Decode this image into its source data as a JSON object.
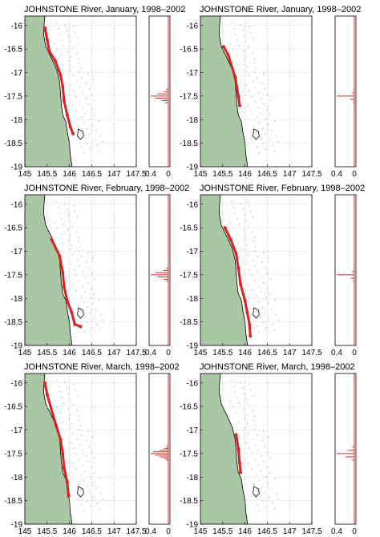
{
  "figure": {
    "panels": [
      {
        "title": "JOHNSTONE River, January, 1998–2002"
      },
      {
        "title": "JOHNSTONE River, January, 1998–2002"
      },
      {
        "title": "JOHNSTONE River, February, 1998–2002"
      },
      {
        "title": "JOHNSTONE River, February, 1998–2002"
      },
      {
        "title": "JOHNSTONE River, March, 1998–2002"
      },
      {
        "title": "JOHNSTONE River, March, 1998–2002"
      }
    ]
  },
  "colors": {
    "land": "#a9c6a5",
    "plume_inshore": "#e02020",
    "plume_offshore": "#c7dcf5",
    "coast": "#000000",
    "grid": "#9a9a9a"
  },
  "chart_data": [
    {
      "type": "scatter",
      "title": "JOHNSTONE River, January, 1998–2002",
      "xlim": [
        145,
        147.5
      ],
      "ylim": [
        -19,
        -15.8
      ],
      "xticks": [
        "145",
        "145.5",
        "146",
        "146.5",
        "147",
        "147.5"
      ],
      "yticks": [
        "-16",
        "-16.5",
        "-17",
        "-17.5",
        "-18",
        "-18.5",
        "-19"
      ],
      "grid": true,
      "series": [
        {
          "values": [
            [
              145.45,
              -16.05
            ],
            [
              145.5,
              -16.3
            ],
            [
              145.55,
              -16.55
            ],
            [
              145.68,
              -16.75
            ],
            [
              145.8,
              -17.05
            ],
            [
              145.85,
              -17.3
            ],
            [
              145.88,
              -17.6
            ],
            [
              145.95,
              -17.9
            ],
            [
              146.02,
              -18.15
            ],
            [
              146.08,
              -18.3
            ]
          ]
        }
      ],
      "side_histogram": {
        "xlim": [
          0,
          0.4
        ],
        "xticks": [
          "0.4",
          "0"
        ],
        "peak_lat": -17.5,
        "values": [
          0.05,
          0.1,
          0.25,
          0.4,
          0.3,
          0.15,
          0.08
        ]
      }
    },
    {
      "type": "scatter",
      "title": "JOHNSTONE River, January, 1998–2002",
      "xlim": [
        145,
        147.5
      ],
      "ylim": [
        -19,
        -15.8
      ],
      "xticks": [
        "145",
        "145.5",
        "146",
        "146.5",
        "147",
        "147.5"
      ],
      "yticks": [
        "-16",
        "-16.5",
        "-17",
        "-17.5",
        "-18",
        "-18.5",
        "-19"
      ],
      "grid": true,
      "series": [
        {
          "values": [
            [
              145.52,
              -16.45
            ],
            [
              145.62,
              -16.62
            ],
            [
              145.78,
              -17.1
            ],
            [
              145.85,
              -17.5
            ],
            [
              145.88,
              -17.7
            ]
          ]
        }
      ],
      "side_histogram": {
        "xlim": [
          0,
          0.4
        ],
        "xticks": [
          "0.4",
          "0"
        ],
        "peak_lat": -17.5,
        "values": [
          0.02,
          0.05,
          0.4,
          0.1,
          0.03
        ]
      }
    },
    {
      "type": "scatter",
      "title": "JOHNSTONE River, February, 1998–2002",
      "xlim": [
        145,
        147.5
      ],
      "ylim": [
        -19,
        -15.8
      ],
      "xticks": [
        "145",
        "145.5",
        "146",
        "146.5",
        "147",
        "147.5"
      ],
      "yticks": [
        "-16",
        "-16.5",
        "-17",
        "-17.5",
        "-18",
        "-18.5",
        "-19"
      ],
      "grid": true,
      "series": [
        {
          "values": [
            [
              145.6,
              -16.75
            ],
            [
              145.78,
              -17.1
            ],
            [
              145.85,
              -17.45
            ],
            [
              145.88,
              -17.75
            ],
            [
              145.95,
              -18.05
            ],
            [
              146.05,
              -18.3
            ],
            [
              146.12,
              -18.55
            ],
            [
              146.25,
              -18.6
            ]
          ]
        }
      ],
      "side_histogram": {
        "xlim": [
          0,
          0.4
        ],
        "xticks": [
          "0.4",
          "0"
        ],
        "peak_lat": -17.5,
        "values": [
          0.05,
          0.12,
          0.3,
          0.4,
          0.25,
          0.1,
          0.05
        ]
      }
    },
    {
      "type": "scatter",
      "title": "JOHNSTONE River, February, 1998–2002",
      "xlim": [
        145,
        147.5
      ],
      "ylim": [
        -19,
        -15.8
      ],
      "xticks": [
        "145",
        "145.5",
        "146",
        "146.5",
        "147",
        "147.5"
      ],
      "yticks": [
        "-16",
        "-16.5",
        "-17",
        "-17.5",
        "-18",
        "-18.5",
        "-19"
      ],
      "grid": true,
      "series": [
        {
          "values": [
            [
              145.55,
              -16.5
            ],
            [
              145.68,
              -16.75
            ],
            [
              145.8,
              -17.05
            ],
            [
              145.85,
              -17.35
            ],
            [
              145.9,
              -17.7
            ],
            [
              146.0,
              -18.05
            ],
            [
              146.05,
              -18.3
            ],
            [
              146.1,
              -18.55
            ],
            [
              146.12,
              -18.8
            ]
          ]
        }
      ],
      "side_histogram": {
        "xlim": [
          0,
          0.4
        ],
        "xticks": [
          "0.4",
          "0"
        ],
        "peak_lat": -17.5,
        "values": [
          0.02,
          0.05,
          0.4,
          0.08,
          0.03
        ]
      }
    },
    {
      "type": "scatter",
      "title": "JOHNSTONE River, March, 1998–2002",
      "xlim": [
        145,
        147.5
      ],
      "ylim": [
        -19,
        -15.8
      ],
      "xticks": [
        "145",
        "145.5",
        "146",
        "146.5",
        "147",
        "147.5"
      ],
      "yticks": [
        "-16",
        "-16.5",
        "-17",
        "-17.5",
        "-18",
        "-18.5",
        "-19"
      ],
      "grid": true,
      "series": [
        {
          "values": [
            [
              145.45,
              -16.0
            ],
            [
              145.5,
              -16.25
            ],
            [
              145.7,
              -16.9
            ],
            [
              145.8,
              -17.2
            ],
            [
              145.85,
              -17.5
            ],
            [
              145.88,
              -17.8
            ],
            [
              145.95,
              -18.1
            ],
            [
              145.98,
              -18.4
            ]
          ]
        }
      ],
      "side_histogram": {
        "xlim": [
          0,
          0.4
        ],
        "xticks": [
          "0.4",
          "0"
        ],
        "peak_lat": -17.5,
        "values": [
          0.05,
          0.1,
          0.2,
          0.35,
          0.4,
          0.3,
          0.2,
          0.1,
          0.05
        ]
      }
    },
    {
      "type": "scatter",
      "title": "JOHNSTONE River, March, 1998–2002",
      "xlim": [
        145,
        147.5
      ],
      "ylim": [
        -19,
        -15.8
      ],
      "xticks": [
        "145",
        "145.5",
        "146",
        "146.5",
        "147",
        "147.5"
      ],
      "yticks": [
        "-16",
        "-16.5",
        "-17",
        "-17.5",
        "-18",
        "-18.5",
        "-19"
      ],
      "grid": true,
      "series": [
        {
          "values": [
            [
              145.8,
              -17.1
            ],
            [
              145.85,
              -17.4
            ],
            [
              145.88,
              -17.7
            ],
            [
              145.9,
              -17.9
            ]
          ]
        }
      ],
      "side_histogram": {
        "xlim": [
          0,
          0.4
        ],
        "xticks": [
          "0.4",
          "0"
        ],
        "peak_lat": -17.5,
        "values": [
          0.05,
          0.15,
          0.4,
          0.2,
          0.05
        ]
      }
    }
  ]
}
